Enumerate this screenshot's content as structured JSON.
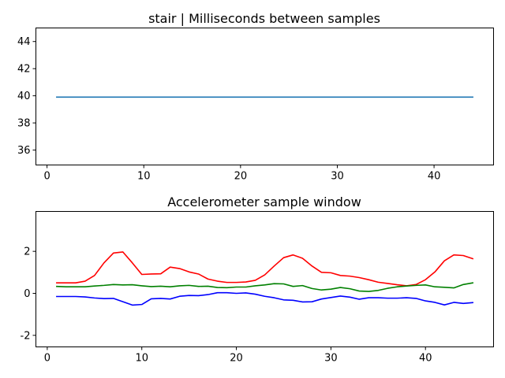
{
  "chart_data": [
    {
      "type": "line",
      "title": "stair | Milliseconds between samples",
      "xlabel": "",
      "ylabel": "",
      "xlim": [
        -1.15,
        46.15
      ],
      "ylim": [
        34.9,
        45.0
      ],
      "xticks": [
        0,
        10,
        20,
        30,
        40
      ],
      "yticks": [
        36,
        38,
        40,
        42,
        44
      ],
      "grid": false,
      "series": [
        {
          "color": "#1f77b4",
          "x": [
            1,
            2,
            3,
            4,
            5,
            6,
            7,
            8,
            9,
            10,
            11,
            12,
            13,
            14,
            15,
            16,
            17,
            18,
            19,
            20,
            21,
            22,
            23,
            24,
            25,
            26,
            27,
            28,
            29,
            30,
            31,
            32,
            33,
            34,
            35,
            36,
            37,
            38,
            39,
            40,
            41,
            42,
            43,
            44
          ],
          "y": [
            39.9,
            39.9,
            39.9,
            39.9,
            39.9,
            39.9,
            39.9,
            39.9,
            39.9,
            39.9,
            39.9,
            39.9,
            39.9,
            39.9,
            39.9,
            39.9,
            39.9,
            39.9,
            39.9,
            39.9,
            39.9,
            39.9,
            39.9,
            39.9,
            39.9,
            39.9,
            39.9,
            39.9,
            39.9,
            39.9,
            39.9,
            39.9,
            39.9,
            39.9,
            39.9,
            39.9,
            39.9,
            39.9,
            39.9,
            39.9,
            39.9,
            39.9,
            39.9,
            39.9
          ]
        }
      ]
    },
    {
      "type": "line",
      "title": "Accelerometer sample window",
      "xlabel": "",
      "ylabel": "",
      "xlim": [
        -1.2,
        47.2
      ],
      "ylim": [
        -2.55,
        3.9
      ],
      "xticks": [
        0,
        10,
        20,
        30,
        40
      ],
      "yticks": [
        -2,
        0,
        2
      ],
      "grid": false,
      "series": [
        {
          "color": "#ff0000",
          "x": [
            1,
            2,
            3,
            4,
            5,
            6,
            7,
            8,
            9,
            10,
            11,
            12,
            13,
            14,
            15,
            16,
            17,
            18,
            19,
            20,
            21,
            22,
            23,
            24,
            25,
            26,
            27,
            28,
            29,
            30,
            31,
            32,
            33,
            34,
            35,
            36,
            37,
            38,
            39,
            40,
            41,
            42,
            43,
            44,
            45
          ],
          "y": [
            0.5,
            0.5,
            0.5,
            0.58,
            0.85,
            1.45,
            1.92,
            1.97,
            1.45,
            0.9,
            0.92,
            0.93,
            1.25,
            1.18,
            1.02,
            0.92,
            0.68,
            0.58,
            0.52,
            0.52,
            0.54,
            0.62,
            0.88,
            1.3,
            1.7,
            1.83,
            1.67,
            1.3,
            1.0,
            0.98,
            0.85,
            0.82,
            0.75,
            0.65,
            0.53,
            0.47,
            0.41,
            0.36,
            0.42,
            0.65,
            1.02,
            1.55,
            1.83,
            1.8,
            1.65
          ]
        },
        {
          "color": "#008000",
          "x": [
            1,
            2,
            3,
            4,
            5,
            6,
            7,
            8,
            9,
            10,
            11,
            12,
            13,
            14,
            15,
            16,
            17,
            18,
            19,
            20,
            21,
            22,
            23,
            24,
            25,
            26,
            27,
            28,
            29,
            30,
            31,
            32,
            33,
            34,
            35,
            36,
            37,
            38,
            39,
            40,
            41,
            42,
            43,
            44,
            45
          ],
          "y": [
            0.33,
            0.31,
            0.31,
            0.31,
            0.35,
            0.38,
            0.42,
            0.4,
            0.41,
            0.36,
            0.32,
            0.34,
            0.31,
            0.36,
            0.38,
            0.33,
            0.34,
            0.28,
            0.27,
            0.3,
            0.3,
            0.36,
            0.4,
            0.46,
            0.45,
            0.33,
            0.37,
            0.23,
            0.16,
            0.2,
            0.28,
            0.22,
            0.11,
            0.09,
            0.14,
            0.24,
            0.31,
            0.35,
            0.38,
            0.4,
            0.31,
            0.29,
            0.26,
            0.42,
            0.5
          ]
        },
        {
          "color": "#0000ff",
          "x": [
            1,
            2,
            3,
            4,
            5,
            6,
            7,
            8,
            9,
            10,
            11,
            12,
            13,
            14,
            15,
            16,
            17,
            18,
            19,
            20,
            21,
            22,
            23,
            24,
            25,
            26,
            27,
            28,
            29,
            30,
            31,
            32,
            33,
            34,
            35,
            36,
            37,
            38,
            39,
            40,
            41,
            42,
            43,
            44,
            45
          ],
          "y": [
            -0.15,
            -0.15,
            -0.15,
            -0.17,
            -0.22,
            -0.25,
            -0.24,
            -0.4,
            -0.56,
            -0.53,
            -0.26,
            -0.24,
            -0.27,
            -0.14,
            -0.1,
            -0.11,
            -0.06,
            0.03,
            0.03,
            0.0,
            0.02,
            -0.04,
            -0.14,
            -0.21,
            -0.31,
            -0.33,
            -0.41,
            -0.4,
            -0.27,
            -0.2,
            -0.13,
            -0.18,
            -0.28,
            -0.21,
            -0.21,
            -0.23,
            -0.23,
            -0.21,
            -0.24,
            -0.36,
            -0.43,
            -0.55,
            -0.43,
            -0.48,
            -0.44
          ]
        }
      ]
    }
  ]
}
